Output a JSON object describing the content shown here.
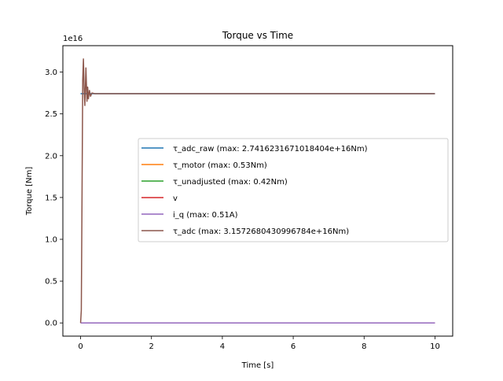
{
  "chart_data": {
    "type": "line",
    "title": "Torque vs Time",
    "xlabel": "Time [s]",
    "ylabel": "Torque [Nm]",
    "offset_text": "1e16",
    "xlim": [
      -0.5,
      10.5
    ],
    "ylim": [
      -0.158,
      3.316
    ],
    "xticks": [
      0,
      2,
      4,
      6,
      8,
      10
    ],
    "xtick_labels": [
      "0",
      "2",
      "4",
      "6",
      "8",
      "10"
    ],
    "yticks": [
      0.0,
      0.5,
      1.0,
      1.5,
      2.0,
      2.5,
      3.0
    ],
    "ytick_labels": [
      "0.0",
      "0.5",
      "1.0",
      "1.5",
      "2.0",
      "2.5",
      "3.0"
    ],
    "grid": false,
    "legend_position": "center-right",
    "series": [
      {
        "name": "τ_adc_raw (max: 2.7416231671018404e+16Nm)",
        "color": "#1f77b4",
        "x": [
          0,
          10
        ],
        "y": [
          2.7416,
          2.7416
        ]
      },
      {
        "name": "τ_motor (max: 0.53Nm)",
        "color": "#ff7f0e",
        "x": [
          0,
          10
        ],
        "y": [
          0,
          0
        ]
      },
      {
        "name": "τ_unadjusted (max: 0.42Nm)",
        "color": "#2ca02c",
        "x": [
          0,
          10
        ],
        "y": [
          0,
          0
        ]
      },
      {
        "name": "v",
        "color": "#d62728",
        "x": [
          0,
          10
        ],
        "y": [
          0,
          0
        ]
      },
      {
        "name": "i_q (max: 0.51A)",
        "color": "#9467bd",
        "x": [
          0,
          10
        ],
        "y": [
          0,
          0
        ]
      },
      {
        "name": "τ_adc (max: 3.1572680430996784e+16Nm)",
        "color": "#8c564b",
        "x": [
          0,
          0.02,
          0.04,
          0.06,
          0.08,
          0.1,
          0.12,
          0.15,
          0.18,
          0.2,
          0.22,
          0.25,
          0.28,
          0.32,
          0.4,
          1,
          10
        ],
        "y": [
          0,
          0.15,
          1.5,
          2.9,
          3.1573,
          2.8,
          2.6,
          3.05,
          2.65,
          2.82,
          2.68,
          2.78,
          2.71,
          2.75,
          2.7416,
          2.7416,
          2.7416
        ]
      }
    ]
  }
}
